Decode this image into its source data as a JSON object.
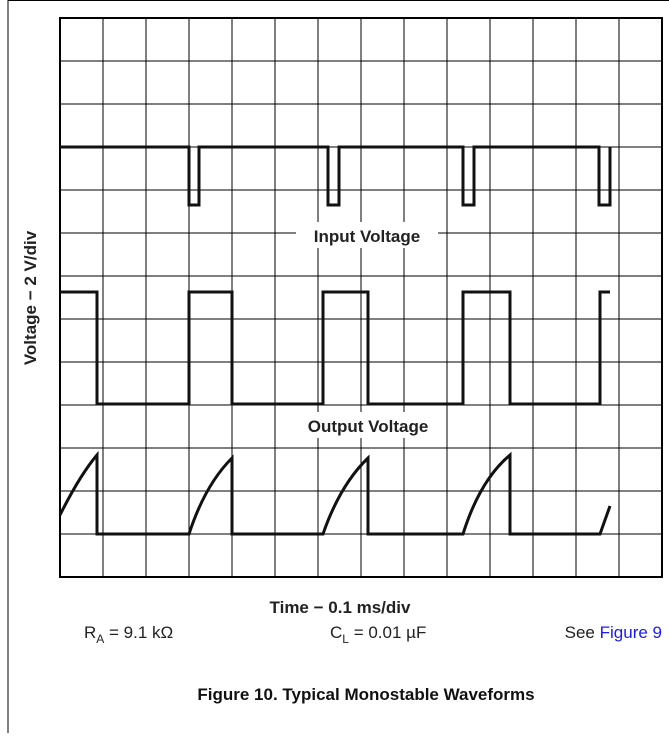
{
  "figure": {
    "y_axis_label": "Voltage − 2 V/div",
    "x_axis_label": "Time − 0.1 ms/div",
    "traces": [
      "Input Voltage",
      "Output Voltage"
    ],
    "params": [
      {
        "symbol": "R",
        "subscript": "A",
        "value": " = 9.1 kΩ"
      },
      {
        "symbol": "C",
        "subscript": "L",
        "value": " = 0.01 µF"
      }
    ],
    "see": {
      "text": "See ",
      "link": "Figure 9"
    },
    "caption": "Figure 10. Typical Monostable Waveforms"
  }
}
